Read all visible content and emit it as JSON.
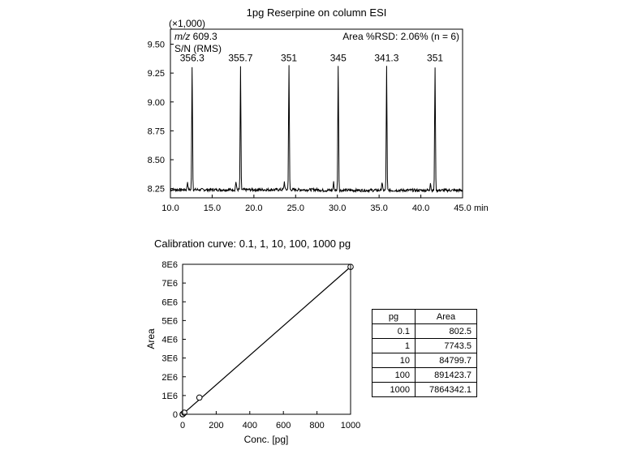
{
  "chart_data": [
    {
      "type": "line",
      "title": "1pg Reserpine on column ESI",
      "xlabel": "min",
      "ylabel": "",
      "y_multiplier_label": "(×1,000)",
      "xlim": [
        10.0,
        45.0
      ],
      "ylim": [
        8.17,
        9.63
      ],
      "x_ticks": [
        "10.0",
        "15.0",
        "20.0",
        "25.0",
        "30.0",
        "35.0",
        "40.0",
        "45.0"
      ],
      "y_ticks": [
        "8.25",
        "8.50",
        "8.75",
        "9.00",
        "9.25",
        "9.50"
      ],
      "annotations": {
        "mz": "m/z 609.3",
        "sn": "S/N (RMS)",
        "rsd": "Area %RSD: 2.06% (n = 6)"
      },
      "baseline": 8.24,
      "peaks": [
        {
          "x": 12.6,
          "y": 9.31,
          "label": "356.3"
        },
        {
          "x": 18.4,
          "y": 9.31,
          "label": "355.7"
        },
        {
          "x": 24.2,
          "y": 9.31,
          "label": "351"
        },
        {
          "x": 30.1,
          "y": 9.31,
          "label": "345"
        },
        {
          "x": 35.9,
          "y": 9.31,
          "label": "341.3"
        },
        {
          "x": 41.7,
          "y": 9.31,
          "label": "351"
        }
      ]
    },
    {
      "type": "scatter",
      "title": "Calibration curve: 0.1, 1, 10, 100, 1000 pg",
      "xlabel": "Conc. [pg]",
      "ylabel": "Area",
      "xlim": [
        0,
        1000
      ],
      "ylim": [
        0,
        8000000
      ],
      "x_ticks": [
        "0",
        "200",
        "400",
        "600",
        "800",
        "1000"
      ],
      "y_ticks": [
        "0",
        "1E6",
        "2E6",
        "3E6",
        "4E6",
        "5E6",
        "6E6",
        "7E6",
        "8E6"
      ],
      "points": [
        {
          "x": 0.1,
          "y": 802.5
        },
        {
          "x": 1,
          "y": 7743.5
        },
        {
          "x": 10,
          "y": 84799.7
        },
        {
          "x": 100,
          "y": 891423.7
        },
        {
          "x": 1000,
          "y": 7864342.1
        }
      ],
      "fit_line": [
        [
          0,
          0
        ],
        [
          1000,
          7864342.1
        ]
      ]
    }
  ],
  "table": {
    "headers": [
      "pg",
      "Area"
    ],
    "rows": [
      [
        "0.1",
        "802.5"
      ],
      [
        "1",
        "7743.5"
      ],
      [
        "10",
        "84799.7"
      ],
      [
        "100",
        "891423.7"
      ],
      [
        "1000",
        "7864342.1"
      ]
    ]
  }
}
